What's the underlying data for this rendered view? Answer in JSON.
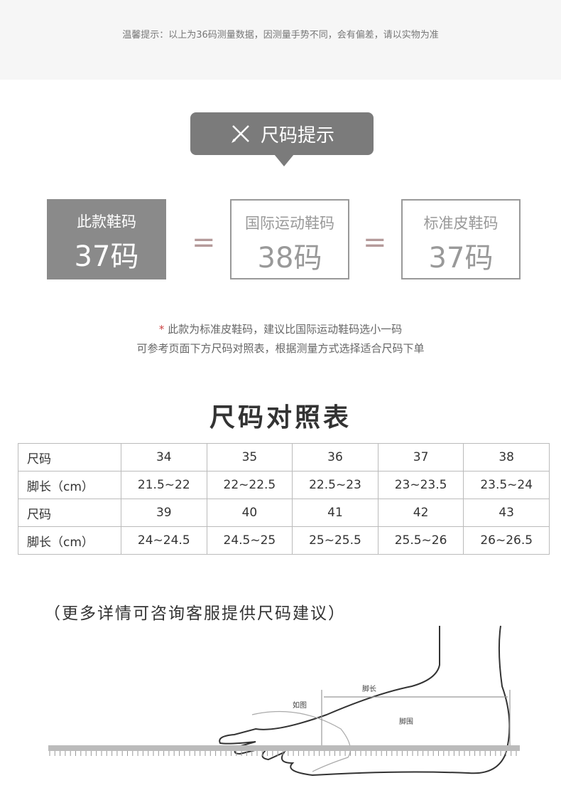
{
  "top_tip": "温馨提示：以上为36码测量数据，因测量手势不同，会有偏差，请以实物为准",
  "badge": {
    "icon": "ruler-pencil-icon",
    "label": "尺码提示"
  },
  "sizes": [
    {
      "label": "此款鞋码",
      "value": "37码"
    },
    {
      "label": "国际运动鞋码",
      "value": "38码"
    },
    {
      "label": "标准皮鞋码",
      "value": "37码"
    }
  ],
  "equals": "=",
  "notes": {
    "star": "*",
    "line1": "此款为标准皮鞋码，建议比国际运动鞋码选小一码",
    "line2": "可参考页面下方尺码对照表，根据测量方式选择适合尺码下单"
  },
  "table_title": "尺码对照表",
  "table": [
    {
      "head": "尺码",
      "cells": [
        "34",
        "35",
        "36",
        "37",
        "38"
      ]
    },
    {
      "head": "脚长（cm）",
      "cells": [
        "21.5~22",
        "22~22.5",
        "22.5~23",
        "23~23.5",
        "23.5~24"
      ]
    },
    {
      "head": "尺码",
      "cells": [
        "39",
        "40",
        "41",
        "42",
        "43"
      ]
    },
    {
      "head": "脚长（cm）",
      "cells": [
        "24~24.5",
        "24.5~25",
        "25~25.5",
        "25.5~26",
        "26~26.5"
      ]
    }
  ],
  "footer": "（更多详情可咨询客服提供尺码建议）",
  "diagram": {
    "foot_length": "脚长",
    "as_shown": "如图",
    "foot_girth": "脚围"
  }
}
